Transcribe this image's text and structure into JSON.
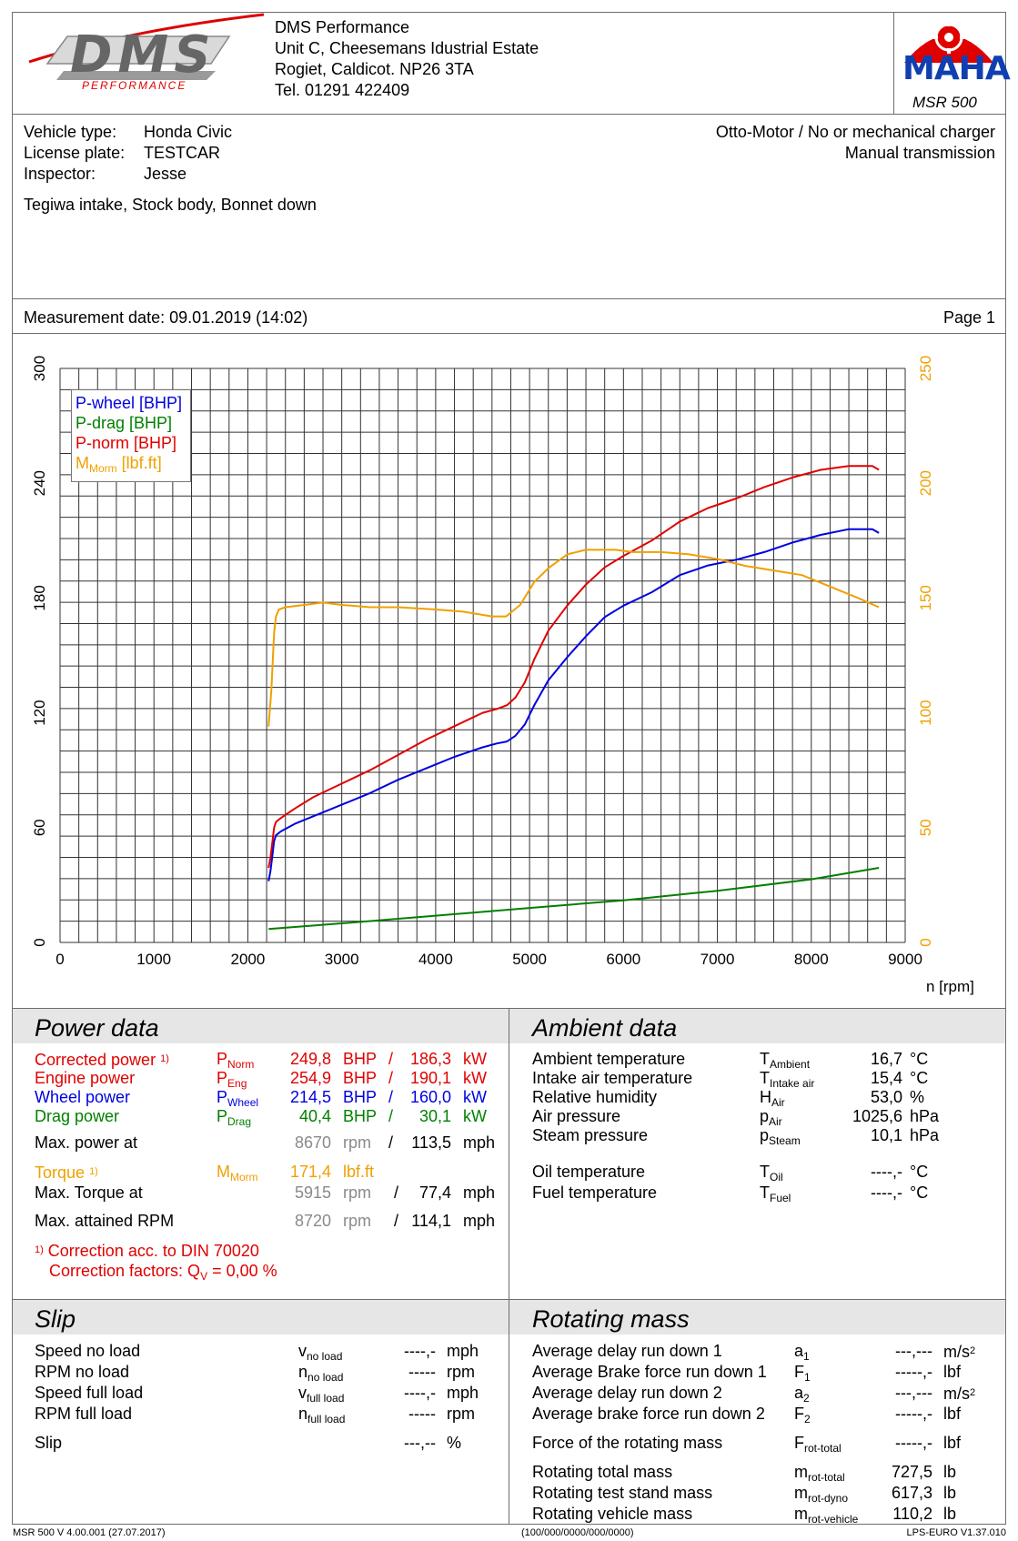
{
  "header": {
    "logo_text": "DMS",
    "logo_sub": "PERFORMANCE",
    "company": "DMS Performance",
    "address1": "Unit C, Cheesemans Idustrial Estate",
    "address2": "Rogiet, Caldicot.  NP26 3TA",
    "phone": "Tel. 01291 422409",
    "maha_logo": "MAHA",
    "model": "MSR 500"
  },
  "vehicle": {
    "type_label": "Vehicle type:",
    "type_value": "Honda Civic",
    "plate_label": "License plate:",
    "plate_value": "TESTCAR",
    "inspector_label": "Inspector:",
    "inspector_value": "Jesse",
    "engine": "Otto-Motor / No or mechanical charger",
    "transmission": "Manual transmission",
    "notes": "Tegiwa intake, Stock body, Bonnet down"
  },
  "measurement": {
    "date": "Measurement date: 09.01.2019 (14:02)",
    "page": "Page 1"
  },
  "chart_data": {
    "type": "line",
    "xlabel": "n [rpm]",
    "xlim": [
      0,
      9000
    ],
    "ylim_left": [
      0,
      300
    ],
    "ylim_right": [
      0,
      250
    ],
    "x_ticks": [
      "0",
      "1000",
      "2000",
      "3000",
      "4000",
      "5000",
      "6000",
      "7000",
      "8000",
      "9000"
    ],
    "y_left_ticks": [
      "0",
      "60",
      "120",
      "180",
      "240",
      "300"
    ],
    "y_right_ticks": [
      "0",
      "50",
      "100",
      "150",
      "200",
      "250"
    ],
    "grid": true,
    "legend_position": "top-left",
    "series": [
      {
        "name": "P-wheel [BHP]",
        "color": "#0000e0",
        "axis": "left",
        "x": [
          2220,
          2240,
          2260,
          2280,
          2300,
          2350,
          2500,
          2700,
          3000,
          3300,
          3600,
          3900,
          4200,
          4500,
          4650,
          4760,
          4850,
          4950,
          5050,
          5200,
          5400,
          5600,
          5800,
          6000,
          6300,
          6600,
          6900,
          7200,
          7500,
          7800,
          8100,
          8400,
          8600,
          8650,
          8720
        ],
        "y": [
          32,
          37,
          45,
          53,
          56,
          58,
          62,
          66,
          72,
          78,
          85,
          91,
          97,
          102,
          104,
          105,
          108,
          114,
          124,
          137,
          149,
          160,
          170,
          176,
          183,
          192,
          197,
          200,
          204,
          209,
          213,
          216,
          216,
          216,
          214
        ]
      },
      {
        "name": "P-drag [BHP]",
        "color": "#008000",
        "axis": "left",
        "x": [
          2220,
          3000,
          4000,
          5000,
          6000,
          7000,
          8000,
          8720
        ],
        "y": [
          7,
          10,
          14,
          18,
          22,
          27,
          33,
          39
        ]
      },
      {
        "name": "P-norm [BHP]",
        "color": "#e00000",
        "axis": "left",
        "x": [
          2220,
          2240,
          2260,
          2280,
          2300,
          2350,
          2500,
          2700,
          3000,
          3300,
          3600,
          3900,
          4200,
          4500,
          4650,
          4760,
          4850,
          4950,
          5050,
          5200,
          5400,
          5600,
          5800,
          6000,
          6300,
          6600,
          6900,
          7200,
          7500,
          7800,
          8100,
          8400,
          8600,
          8650,
          8720
        ],
        "y": [
          39,
          44,
          52,
          60,
          63,
          65,
          70,
          76,
          83,
          90,
          98,
          106,
          113,
          120,
          122,
          124,
          128,
          136,
          148,
          163,
          176,
          187,
          196,
          202,
          210,
          220,
          227,
          232,
          238,
          243,
          247,
          249,
          249,
          249,
          247
        ]
      },
      {
        "name": "M_Morm [lbf.ft]",
        "color": "#f0a000",
        "axis": "right",
        "x": [
          2220,
          2250,
          2280,
          2300,
          2330,
          2400,
          2600,
          2800,
          3000,
          3300,
          3600,
          4000,
          4300,
          4600,
          4750,
          4900,
          5050,
          5200,
          5400,
          5600,
          5800,
          5915,
          6100,
          6400,
          6700,
          7000,
          7300,
          7600,
          7900,
          8200,
          8500,
          8720
        ],
        "y": [
          94,
          110,
          135,
          142,
          145,
          146,
          147,
          148,
          147,
          146,
          146,
          145,
          144,
          142,
          142,
          147,
          157,
          163,
          169,
          171,
          171,
          171,
          170,
          170,
          169,
          167,
          164,
          162,
          160,
          155,
          150,
          146
        ]
      }
    ]
  },
  "power": {
    "title": "Power data",
    "rows": [
      {
        "label": "Corrected power",
        "note": "1)",
        "sym": "P",
        "sub": "Norm",
        "v1": "249,8",
        "u1": "BHP",
        "sep": "/",
        "v2": "186,3",
        "u2": "kW",
        "cls": "red"
      },
      {
        "label": "Engine power",
        "note": "",
        "sym": "P",
        "sub": "Eng",
        "v1": "254,9",
        "u1": "BHP",
        "sep": "/",
        "v2": "190,1",
        "u2": "kW",
        "cls": "red"
      },
      {
        "label": "Wheel power",
        "note": "",
        "sym": "P",
        "sub": "Wheel",
        "v1": "214,5",
        "u1": "BHP",
        "sep": "/",
        "v2": "160,0",
        "u2": "kW",
        "cls": "blue"
      },
      {
        "label": "Drag power",
        "note": "",
        "sym": "P",
        "sub": "Drag",
        "v1": "40,4",
        "u1": "BHP",
        "sep": "/",
        "v2": "30,1",
        "u2": "kW",
        "cls": "green"
      }
    ],
    "max_power_at": {
      "label": "Max. power at",
      "rpm": "8670",
      "rpm_unit": "rpm",
      "sep": "/",
      "speed": "113,5",
      "speed_unit": "mph"
    },
    "torque": {
      "label": "Torque",
      "note": "1)",
      "sym": "M",
      "sub": "Morm",
      "value": "171,4",
      "unit": "lbf.ft"
    },
    "max_torque_at": {
      "label": "Max. Torque at",
      "rpm": "5915",
      "rpm_unit": "rpm",
      "sep": "/",
      "speed": "77,4",
      "speed_unit": "mph"
    },
    "max_rpm": {
      "label": "Max. attained RPM",
      "rpm": "8720",
      "rpm_unit": "rpm",
      "sep": "/",
      "speed": "114,1",
      "speed_unit": "mph"
    },
    "correction_note": "1)",
    "correction_line1": "Correction acc. to DIN 70020",
    "correction_line2_a": "Correction factors: Q",
    "correction_line2_sub": "V",
    "correction_line2_b": " =    0,00 %"
  },
  "ambient": {
    "title": "Ambient data",
    "rows": [
      {
        "label": "Ambient temperature",
        "sym": "T",
        "sub": "Ambient",
        "value": "16,7",
        "unit": "°C"
      },
      {
        "label": "Intake air temperature",
        "sym": "T",
        "sub": "Intake air",
        "value": "15,4",
        "unit": "°C"
      },
      {
        "label": "Relative humidity",
        "sym": "H",
        "sub": "Air",
        "value": "53,0",
        "unit": "%"
      },
      {
        "label": "Air pressure",
        "sym": "p",
        "sub": "Air",
        "value": "1025,6",
        "unit": "hPa"
      },
      {
        "label": "Steam pressure",
        "sym": "p",
        "sub": "Steam",
        "value": "10,1",
        "unit": "hPa"
      },
      {
        "label": "Oil temperature",
        "sym": "T",
        "sub": "Oil",
        "value": "----,-",
        "unit": "°C"
      },
      {
        "label": "Fuel temperature",
        "sym": "T",
        "sub": "Fuel",
        "value": "----,-",
        "unit": "°C"
      }
    ]
  },
  "slip": {
    "title": "Slip",
    "rows": [
      {
        "label": "Speed no load",
        "sym": "v",
        "sub": "no load",
        "value": "----,-",
        "unit": "mph"
      },
      {
        "label": "RPM no load",
        "sym": "n",
        "sub": "no load",
        "value": "-----",
        "unit": "rpm"
      },
      {
        "label": "Speed full load",
        "sym": "v",
        "sub": "full load",
        "value": "----,-",
        "unit": "mph"
      },
      {
        "label": "RPM full load",
        "sym": "n",
        "sub": "full load",
        "value": "-----",
        "unit": "rpm"
      },
      {
        "label": "Slip",
        "sym": "",
        "sub": "",
        "value": "---,--",
        "unit": "%"
      }
    ]
  },
  "rotating": {
    "title": "Rotating mass",
    "rows": [
      {
        "label": "Average delay run down 1",
        "sym": "a",
        "sub": "1",
        "value": "---,---",
        "unit": "m/s",
        "sup": "2"
      },
      {
        "label": "Average Brake force run down 1",
        "sym": "F",
        "sub": "1",
        "value": "-----,-",
        "unit": "lbf",
        "sup": ""
      },
      {
        "label": "Average delay run down 2",
        "sym": "a",
        "sub": "2",
        "value": "---,---",
        "unit": "m/s",
        "sup": "2"
      },
      {
        "label": "Average brake force run down 2",
        "sym": "F",
        "sub": "2",
        "value": "-----,-",
        "unit": "lbf",
        "sup": ""
      },
      {
        "label": "Force of the rotating mass",
        "sym": "F",
        "sub": "rot-total",
        "value": "-----,-",
        "unit": "lbf",
        "sup": ""
      },
      {
        "label": "Rotating total mass",
        "sym": "m",
        "sub": "rot-total",
        "value": "727,5",
        "unit": "lb",
        "sup": ""
      },
      {
        "label": "Rotating test stand mass",
        "sym": "m",
        "sub": "rot-dyno",
        "value": "617,3",
        "unit": "lb",
        "sup": ""
      },
      {
        "label": "Rotating vehicle mass",
        "sym": "m",
        "sub": "rot-vehicle",
        "value": "110,2",
        "unit": "lb",
        "sup": ""
      }
    ]
  },
  "footer": {
    "left": "MSR 500 V 4.00.001 (27.07.2017)",
    "center": "(100/000/0000/000/0000)",
    "right": "LPS-EURO V1.37.010"
  }
}
